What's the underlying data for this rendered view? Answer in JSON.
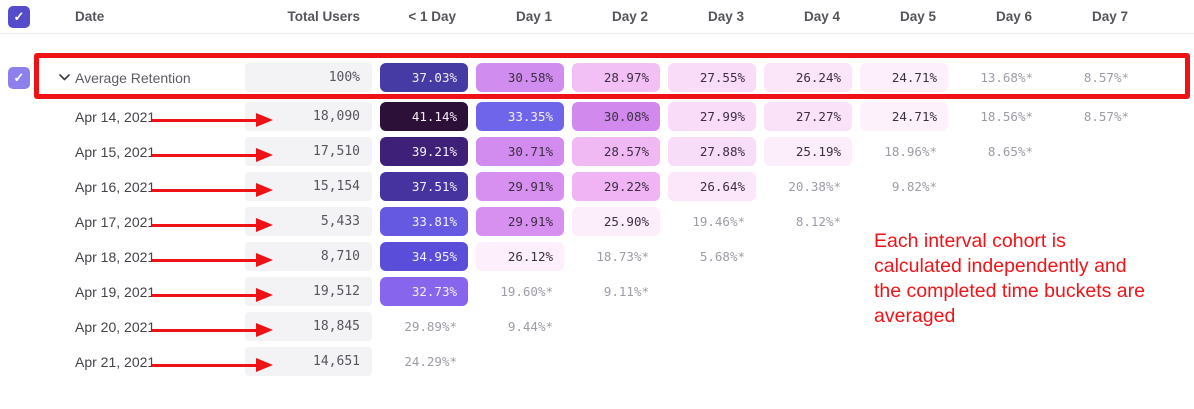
{
  "colors": {
    "select_all_checkbox": "#544ccb",
    "row_checkbox": "#8b80ec",
    "annotation_red": "#ee1216",
    "cell_text_light": "#f4eef7",
    "cell_text_dark": "#3d2f42",
    "star_text": "#9d9ca6",
    "total_pill_bg": "#f3f2f5"
  },
  "icons": {
    "check": "✓"
  },
  "table": {
    "columns": {
      "date": "Date",
      "total_users": "Total Users",
      "periods": [
        "< 1 Day",
        "Day 1",
        "Day 2",
        "Day 3",
        "Day 4",
        "Day 5",
        "Day 6",
        "Day 7"
      ]
    },
    "rows": [
      {
        "label": "Average Retention",
        "type": "average",
        "total": "100%",
        "cells": [
          {
            "value": "37.03%",
            "bg": "#463aa5",
            "text": "light"
          },
          {
            "value": "30.58%",
            "bg": "#d18cef",
            "text": "dark"
          },
          {
            "value": "28.97%",
            "bg": "#f2c0f4",
            "text": "dark"
          },
          {
            "value": "27.55%",
            "bg": "#f8dcf8",
            "text": "dark"
          },
          {
            "value": "26.24%",
            "bg": "#fae5f9",
            "text": "dark"
          },
          {
            "value": "24.71%",
            "bg": "#fdf0fc",
            "text": "dark"
          },
          {
            "value": "13.68%*",
            "bg": null,
            "text": "star"
          },
          {
            "value": "8.57%*",
            "bg": null,
            "text": "star"
          }
        ]
      },
      {
        "label": "Apr 14, 2021",
        "type": "date",
        "total": "18,090",
        "cells": [
          {
            "value": "41.14%",
            "bg": "#2d1038",
            "text": "light"
          },
          {
            "value": "33.35%",
            "bg": "#6f65ea",
            "text": "light"
          },
          {
            "value": "30.08%",
            "bg": "#d189ee",
            "text": "dark"
          },
          {
            "value": "27.99%",
            "bg": "#f8dcf8",
            "text": "dark"
          },
          {
            "value": "27.27%",
            "bg": "#fae3f9",
            "text": "dark"
          },
          {
            "value": "24.71%",
            "bg": "#fdf1fc",
            "text": "dark"
          },
          {
            "value": "18.56%*",
            "bg": null,
            "text": "star"
          },
          {
            "value": "8.57%*",
            "bg": null,
            "text": "star"
          }
        ]
      },
      {
        "label": "Apr 15, 2021",
        "type": "date",
        "total": "17,510",
        "cells": [
          {
            "value": "39.21%",
            "bg": "#3f2078",
            "text": "light"
          },
          {
            "value": "30.71%",
            "bg": "#d28bee",
            "text": "dark"
          },
          {
            "value": "28.57%",
            "bg": "#f1b9f3",
            "text": "dark"
          },
          {
            "value": "27.88%",
            "bg": "#f8ddf8",
            "text": "dark"
          },
          {
            "value": "25.19%",
            "bg": "#fceefb",
            "text": "dark"
          },
          {
            "value": "18.96%*",
            "bg": null,
            "text": "star"
          },
          {
            "value": "8.65%*",
            "bg": null,
            "text": "star"
          }
        ]
      },
      {
        "label": "Apr 16, 2021",
        "type": "date",
        "total": "15,154",
        "cells": [
          {
            "value": "37.51%",
            "bg": "#46339f",
            "text": "light"
          },
          {
            "value": "29.91%",
            "bg": "#d78ff0",
            "text": "dark"
          },
          {
            "value": "29.22%",
            "bg": "#f0b3f3",
            "text": "dark"
          },
          {
            "value": "26.64%",
            "bg": "#fbe6fa",
            "text": "dark"
          },
          {
            "value": "20.38%*",
            "bg": null,
            "text": "star"
          },
          {
            "value": "9.82%*",
            "bg": null,
            "text": "star"
          }
        ]
      },
      {
        "label": "Apr 17, 2021",
        "type": "date",
        "total": "5,433",
        "cells": [
          {
            "value": "33.81%",
            "bg": "#6559e2",
            "text": "light"
          },
          {
            "value": "29.91%",
            "bg": "#d78ff0",
            "text": "dark"
          },
          {
            "value": "25.90%",
            "bg": "#fceefb",
            "text": "dark"
          },
          {
            "value": "19.46%*",
            "bg": null,
            "text": "star"
          },
          {
            "value": "8.12%*",
            "bg": null,
            "text": "star"
          }
        ]
      },
      {
        "label": "Apr 18, 2021",
        "type": "date",
        "total": "8,710",
        "cells": [
          {
            "value": "34.95%",
            "bg": "#5a4dda",
            "text": "light"
          },
          {
            "value": "26.12%",
            "bg": "#fdeffc",
            "text": "dark"
          },
          {
            "value": "18.73%*",
            "bg": null,
            "text": "star"
          },
          {
            "value": "5.68%*",
            "bg": null,
            "text": "star"
          }
        ]
      },
      {
        "label": "Apr 19, 2021",
        "type": "date",
        "total": "19,512",
        "cells": [
          {
            "value": "32.73%",
            "bg": "#8765ec",
            "text": "light"
          },
          {
            "value": "19.60%*",
            "bg": null,
            "text": "star"
          },
          {
            "value": "9.11%*",
            "bg": null,
            "text": "star"
          }
        ]
      },
      {
        "label": "Apr 20, 2021",
        "type": "date",
        "total": "18,845",
        "cells": [
          {
            "value": "29.89%*",
            "bg": null,
            "text": "star"
          },
          {
            "value": "9.44%*",
            "bg": null,
            "text": "star"
          }
        ]
      },
      {
        "label": "Apr 21, 2021",
        "type": "date",
        "total": "14,651",
        "cells": [
          {
            "value": "24.29%*",
            "bg": null,
            "text": "star"
          }
        ]
      }
    ]
  },
  "annotations": {
    "note_lines": [
      "Each interval cohort is",
      "calculated independently and",
      "the completed time buckets are",
      "averaged"
    ]
  }
}
